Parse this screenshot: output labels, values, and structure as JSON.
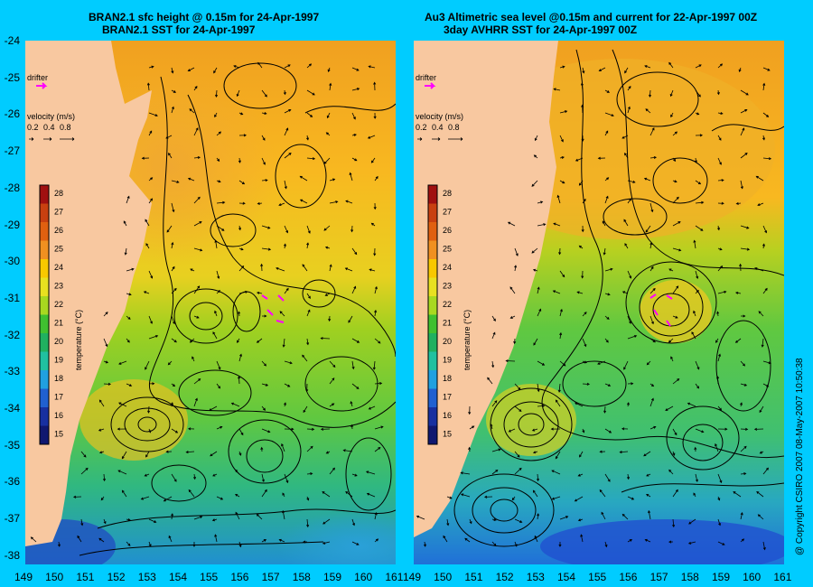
{
  "left_panel": {
    "title_line1": "BRAN2.1 sfc height @ 0.15m for 24-Apr-1997",
    "title_line2": "BRAN2.1 SST for 24-Apr-1997"
  },
  "right_panel": {
    "title_line1": "Au3 Altimetric sea level  @0.15m and current for 22-Apr-1997 00Z",
    "title_line2": "3day AVHRR SST for 24-Apr-1997 00Z"
  },
  "drifter_label": "drifter",
  "velocity_legend": {
    "title": "velocity (m/s)",
    "values": [
      "0.2",
      "0.4",
      "0.8"
    ]
  },
  "colorbar": {
    "label": "temperature (°C)",
    "ticks": [
      "28",
      "27",
      "26",
      "25",
      "24",
      "23",
      "22",
      "21",
      "20",
      "19",
      "18",
      "17",
      "16",
      "15"
    ],
    "colors": [
      "#a01010",
      "#c84010",
      "#e06010",
      "#f09020",
      "#f8c800",
      "#e8e020",
      "#a8d820",
      "#40c030",
      "#20b060",
      "#20c0a0",
      "#20a0e0",
      "#2060d0",
      "#1830a0",
      "#101870"
    ]
  },
  "lat_ticks": [
    "-24",
    "-25",
    "-26",
    "-27",
    "-28",
    "-29",
    "-30",
    "-31",
    "-32",
    "-33",
    "-34",
    "-35",
    "-36",
    "-37",
    "-38"
  ],
  "lon_ticks": [
    "149",
    "150",
    "151",
    "152",
    "153",
    "154",
    "155",
    "156",
    "157",
    "158",
    "159",
    "160",
    "161"
  ],
  "copyright": "@ Copyright CSIRO 2007  08-May-2007 10:50:38",
  "colors": {
    "background": "#00ccff",
    "land": "#f8c8a0",
    "drifter_arrow": "#ff00ff"
  }
}
